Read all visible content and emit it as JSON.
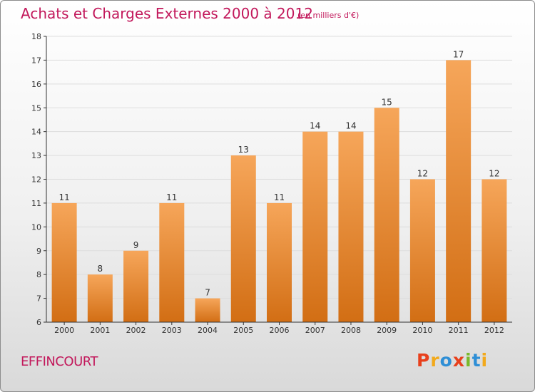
{
  "title": "Achats et Charges Externes 2000 à 2012",
  "subtitle": "(en milliers d'€)",
  "commune": "EFFINCOURT",
  "logo": {
    "text": "Proxiti",
    "colors": [
      "#e8401c",
      "#f2a91b",
      "#2f8fd6",
      "#e8401c",
      "#7ab92a",
      "#2f8fd6",
      "#f2a91b"
    ]
  },
  "colors": {
    "title": "#c2185b",
    "bar_top": "#f6a65a",
    "bar_bottom": "#d26e14",
    "axis": "#333333",
    "grid": "#dddddd"
  },
  "chart_data": {
    "type": "bar",
    "title": "Achats et Charges Externes 2000 à 2012",
    "xlabel": "",
    "ylabel": "",
    "categories": [
      "2000",
      "2001",
      "2002",
      "2003",
      "2004",
      "2005",
      "2006",
      "2007",
      "2008",
      "2009",
      "2010",
      "2011",
      "2012"
    ],
    "values": [
      11,
      8,
      9,
      11,
      7,
      13,
      11,
      14,
      14,
      15,
      12,
      17,
      12
    ],
    "ylim": [
      6,
      18
    ],
    "yticks": [
      6,
      7,
      8,
      9,
      10,
      11,
      12,
      13,
      14,
      15,
      16,
      17,
      18
    ],
    "grid": true,
    "legend": "none"
  }
}
